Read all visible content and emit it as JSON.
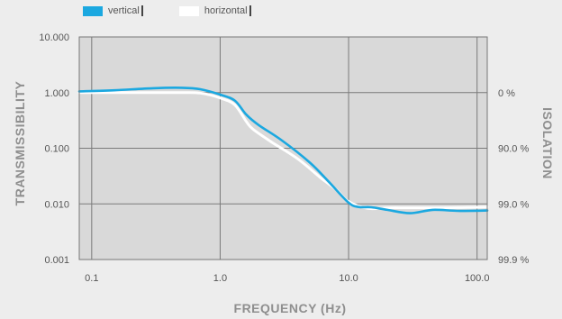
{
  "chart_data": {
    "type": "line",
    "title": "",
    "xlabel": "FREQUENCY (Hz)",
    "ylabel": "TRANSMISSIBILITY",
    "ylabel_right": "ISOLATION",
    "x_scale": "log",
    "y_scale": "log",
    "xlim": [
      0.08,
      120
    ],
    "ylim": [
      0.001,
      10
    ],
    "grid": true,
    "legend_position": "top-left",
    "x_ticks": [
      {
        "value": 0.1,
        "label": "0.1"
      },
      {
        "value": 1,
        "label": "1.0"
      },
      {
        "value": 10,
        "label": "10.0"
      },
      {
        "value": 100,
        "label": "100.0"
      }
    ],
    "y_ticks": [
      {
        "value": 10,
        "label": "10.000"
      },
      {
        "value": 1,
        "label": "1.000"
      },
      {
        "value": 0.1,
        "label": "0.100"
      },
      {
        "value": 0.01,
        "label": "0.010"
      },
      {
        "value": 0.001,
        "label": "0.001"
      }
    ],
    "y_right_ticks": [
      {
        "value": 1,
        "label": "0 %"
      },
      {
        "value": 0.1,
        "label": "90.0 %"
      },
      {
        "value": 0.01,
        "label": "99.0 %"
      },
      {
        "value": 0.001,
        "label": "99.9 %"
      }
    ],
    "series": [
      {
        "name": "horizontal",
        "color": "#ffffff",
        "points": [
          [
            0.08,
            1.0
          ],
          [
            0.15,
            1.0
          ],
          [
            0.3,
            1.0
          ],
          [
            0.5,
            1.0
          ],
          [
            0.7,
            0.98
          ],
          [
            1.0,
            0.8
          ],
          [
            1.3,
            0.6
          ],
          [
            1.6,
            0.3
          ],
          [
            1.8,
            0.22
          ],
          [
            2.5,
            0.13
          ],
          [
            4.0,
            0.065
          ],
          [
            6.0,
            0.03
          ],
          [
            8.0,
            0.018
          ],
          [
            10.0,
            0.011
          ],
          [
            14.0,
            0.0083
          ],
          [
            20.0,
            0.0085
          ],
          [
            30.0,
            0.0085
          ],
          [
            50.0,
            0.0085
          ],
          [
            80.0,
            0.0086
          ],
          [
            120.0,
            0.0088
          ]
        ]
      },
      {
        "name": "vertical",
        "color": "#1ba8e0",
        "points": [
          [
            0.08,
            1.05
          ],
          [
            0.15,
            1.1
          ],
          [
            0.3,
            1.2
          ],
          [
            0.5,
            1.22
          ],
          [
            0.7,
            1.15
          ],
          [
            1.0,
            0.92
          ],
          [
            1.3,
            0.72
          ],
          [
            1.6,
            0.4
          ],
          [
            2.0,
            0.26
          ],
          [
            3.0,
            0.14
          ],
          [
            5.0,
            0.055
          ],
          [
            7.0,
            0.025
          ],
          [
            10.0,
            0.0105
          ],
          [
            12.0,
            0.0088
          ],
          [
            15.0,
            0.0087
          ],
          [
            20.0,
            0.0078
          ],
          [
            30.0,
            0.0068
          ],
          [
            45.0,
            0.0078
          ],
          [
            70.0,
            0.0075
          ],
          [
            120.0,
            0.0076
          ]
        ]
      }
    ]
  },
  "legend": [
    {
      "label": "vertical",
      "color": "#1ba8e0"
    },
    {
      "label": "horizontal",
      "color": "#ffffff"
    }
  ]
}
